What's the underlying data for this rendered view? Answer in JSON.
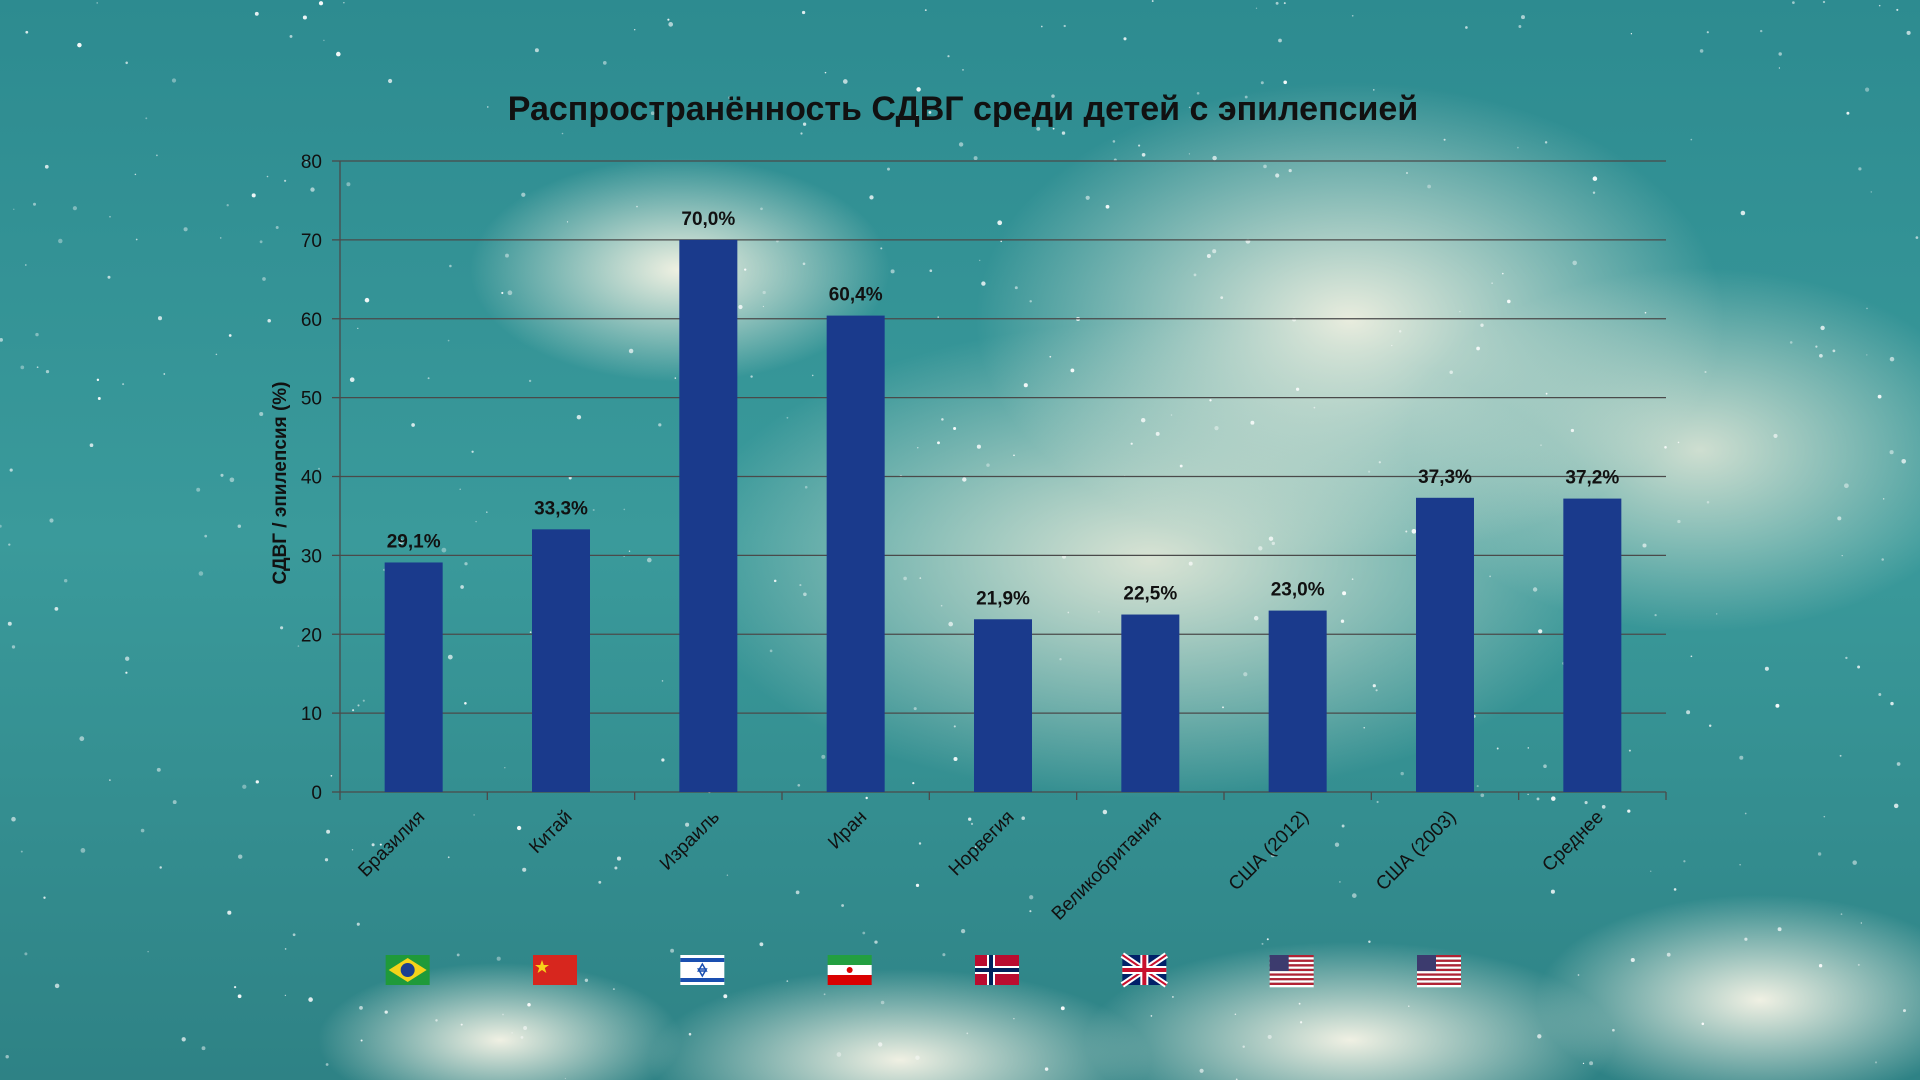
{
  "chart_data": {
    "type": "bar",
    "title": "Распространённость СДВГ среди детей с эпилепсией",
    "ylabel": "СДВГ / эпилепсия (%)",
    "xlabel": "",
    "ylim": [
      0,
      80
    ],
    "yticks": [
      0,
      10,
      20,
      30,
      40,
      50,
      60,
      70,
      80
    ],
    "grid": true,
    "bar_color": "#1a3a8c",
    "categories": [
      "Бразилия",
      "Китай",
      "Израиль",
      "Иран",
      "Норвегия",
      "Великобритания",
      "США (2012)",
      "США (2003)",
      "Среднее"
    ],
    "values": [
      29.1,
      33.3,
      70.0,
      60.4,
      21.9,
      22.5,
      23.0,
      37.3,
      37.2
    ],
    "data_labels": [
      "29,1%",
      "33,3%",
      "70,0%",
      "60,4%",
      "21,9%",
      "22,5%",
      "23,0%",
      "37,3%",
      "37,2%"
    ],
    "flags": [
      "brazil-flag-icon",
      "china-flag-icon",
      "israel-flag-icon",
      "iran-flag-icon",
      "norway-flag-icon",
      "uk-flag-icon",
      "usa-flag-icon",
      "usa-flag-icon",
      ""
    ]
  }
}
